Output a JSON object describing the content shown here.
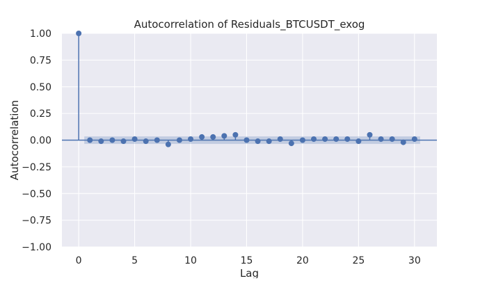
{
  "chart_data": {
    "type": "stem",
    "title": "Autocorrelation of Residuals_BTCUSDT_exog",
    "xlabel": "Lag",
    "ylabel": "Autocorrelation",
    "xlim": [
      -1.5,
      32
    ],
    "ylim": [
      -1.0,
      1.0
    ],
    "x_ticks": [
      0,
      5,
      10,
      15,
      20,
      25,
      30
    ],
    "x_tick_labels": [
      "0",
      "5",
      "10",
      "15",
      "20",
      "25",
      "30"
    ],
    "y_ticks": [
      1.0,
      0.75,
      0.5,
      0.25,
      0.0,
      -0.25,
      -0.5,
      -0.75,
      -1.0
    ],
    "y_tick_labels": [
      "1.00",
      "0.75",
      "0.50",
      "0.25",
      "0.00",
      "−0.25",
      "−0.50",
      "−0.75",
      "−1.00"
    ],
    "grid": true,
    "series": [
      {
        "lags": [
          0,
          1,
          2,
          3,
          4,
          5,
          6,
          7,
          8,
          9,
          10,
          11,
          12,
          13,
          14,
          15,
          16,
          17,
          18,
          19,
          20,
          21,
          22,
          23,
          24,
          25,
          26,
          27,
          28,
          29,
          30
        ],
        "values": [
          1.0,
          0.0,
          -0.01,
          0.0,
          -0.01,
          0.01,
          -0.01,
          0.0,
          -0.04,
          0.0,
          0.01,
          0.03,
          0.03,
          0.04,
          0.05,
          0.0,
          -0.01,
          -0.01,
          0.01,
          -0.03,
          0.0,
          0.01,
          0.01,
          0.01,
          0.01,
          -0.01,
          0.05,
          0.01,
          0.01,
          -0.02,
          0.01
        ]
      }
    ],
    "confidence_band": {
      "x_range": [
        0.5,
        30.5
      ],
      "lower": -0.035,
      "upper": 0.035
    },
    "colors": {
      "marker": "#4c72b0",
      "band": "#4c72b0",
      "plot_background": "#eaeaf2",
      "grid": "#ffffff",
      "text": "#262626"
    }
  }
}
